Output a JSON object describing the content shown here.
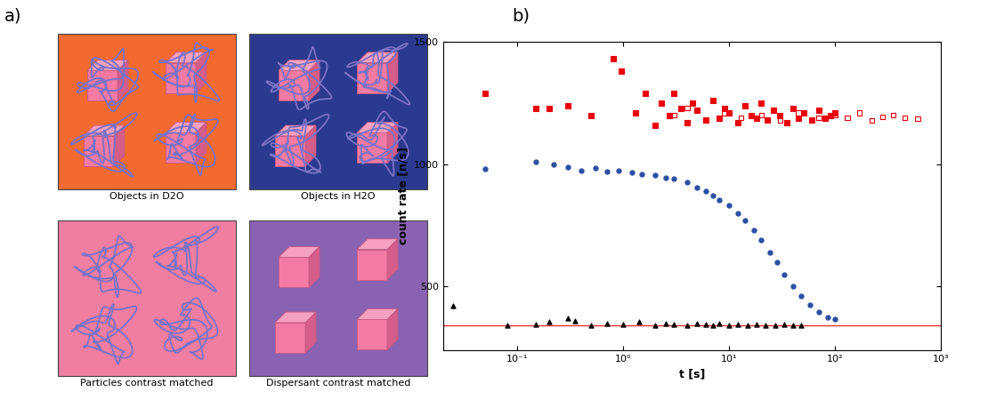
{
  "panel_labels": [
    "a)",
    "b)"
  ],
  "diagram": {
    "panels": [
      {
        "label": "Objects in D2O",
        "color": "#f26a30"
      },
      {
        "label": "Objects in H2O",
        "color": "#2b3a8f"
      },
      {
        "label": "Particles contrast matched",
        "color": "#f07ea2"
      },
      {
        "label": "Dispersant contrast matched",
        "color": "#8a62b2"
      }
    ]
  },
  "chart_data": {
    "type": "scatter",
    "xlabel": "t [s]",
    "ylabel": "count rate [n/s]",
    "log": "x",
    "xlim": [
      0.02,
      1000
    ],
    "xticks": [
      {
        "value": 0.1,
        "label": "10⁻¹"
      },
      {
        "value": 1,
        "label": "10⁰"
      },
      {
        "value": 10,
        "label": "10¹"
      },
      {
        "value": 100,
        "label": "10²"
      },
      {
        "value": 1000,
        "label": "10³"
      }
    ],
    "ylim": [
      240,
      1500
    ],
    "yticks": [
      500,
      1000,
      1500
    ],
    "reference_line": {
      "value": 340,
      "color": "#e8312f"
    },
    "series": [
      {
        "color": "#e8000b",
        "marker": "square",
        "x": [
          0.05,
          0.15,
          0.2,
          0.3,
          0.5,
          0.8,
          0.95,
          1.3,
          1.6,
          2.0,
          2.3,
          2.7,
          3.0,
          3.5,
          4.0,
          4.5,
          5,
          6,
          7,
          8,
          9,
          10,
          12,
          14,
          16,
          18,
          20,
          23,
          26,
          30,
          35,
          40,
          45,
          50,
          60,
          70,
          80,
          90,
          100
        ],
        "values": [
          1290,
          1230,
          1230,
          1240,
          1200,
          1430,
          1380,
          1210,
          1290,
          1160,
          1250,
          1200,
          1290,
          1230,
          1170,
          1250,
          1220,
          1180,
          1260,
          1190,
          1230,
          1210,
          1170,
          1240,
          1200,
          1190,
          1250,
          1180,
          1220,
          1200,
          1170,
          1230,
          1190,
          1210,
          1180,
          1220,
          1190,
          1200,
          1210
        ]
      },
      {
        "color": "#e8000b",
        "marker": "open_square",
        "x": [
          3,
          4,
          6,
          9,
          13,
          20,
          30,
          45,
          70,
          100,
          130,
          170,
          220,
          280,
          350,
          450,
          600
        ],
        "values": [
          1200,
          1230,
          1180,
          1210,
          1190,
          1200,
          1180,
          1210,
          1190,
          1200,
          1190,
          1210,
          1180,
          1195,
          1200,
          1190,
          1185
        ]
      },
      {
        "color": "#2c4ea3",
        "marker": "circle",
        "x": [
          0.05,
          0.15,
          0.22,
          0.3,
          0.4,
          0.55,
          0.7,
          0.9,
          1.2,
          1.5,
          2,
          2.5,
          3,
          4,
          5,
          6,
          7,
          8,
          10,
          12,
          14,
          17,
          20,
          24,
          28,
          33,
          40,
          48,
          58,
          70,
          85,
          100
        ],
        "values": [
          980,
          1010,
          1000,
          990,
          975,
          985,
          970,
          975,
          965,
          960,
          955,
          945,
          940,
          925,
          905,
          890,
          870,
          855,
          830,
          800,
          770,
          730,
          690,
          640,
          600,
          550,
          500,
          460,
          425,
          395,
          375,
          365
        ]
      },
      {
        "color": "#000000",
        "marker": "triangle",
        "x": [
          0.025,
          0.08,
          0.15,
          0.2,
          0.3,
          0.35,
          0.5,
          0.7,
          1,
          1.4,
          2,
          2.5,
          3,
          4,
          5,
          6,
          7,
          8,
          10,
          12,
          15,
          18,
          22,
          27,
          33,
          40,
          48
        ],
        "values": [
          420,
          340,
          345,
          355,
          370,
          360,
          340,
          350,
          345,
          355,
          340,
          350,
          345,
          340,
          350,
          345,
          340,
          348,
          342,
          345,
          340,
          344,
          342,
          340,
          343,
          341,
          340
        ]
      }
    ]
  }
}
